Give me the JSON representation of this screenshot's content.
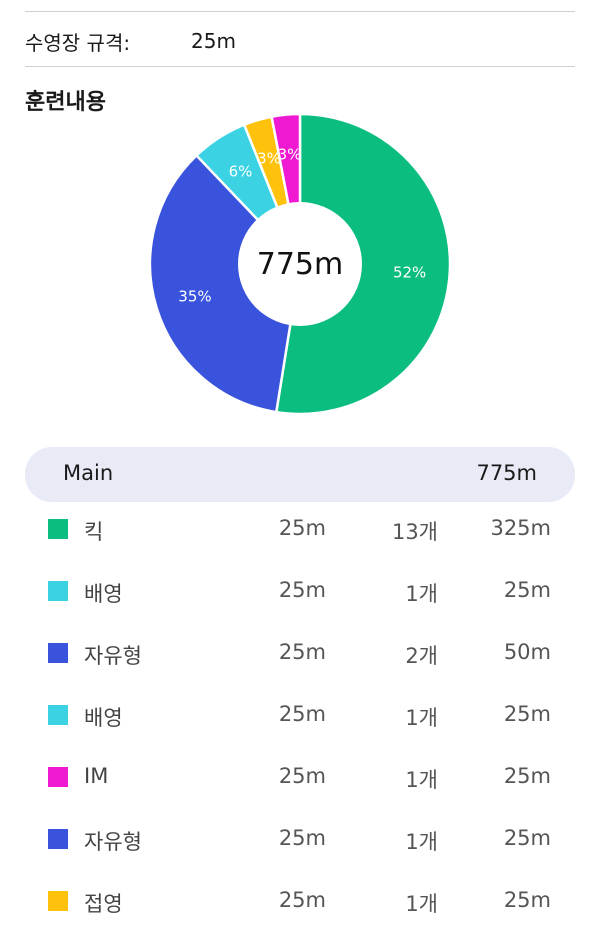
{
  "pool": {
    "label": "수영장 규격:",
    "value": "25m"
  },
  "section_title": "훈련내용",
  "chart_data": {
    "type": "pie",
    "center_label": "775m",
    "slices": [
      {
        "label": "52%",
        "value": 52,
        "color": "#0bbd7e"
      },
      {
        "label": "35%",
        "value": 35,
        "color": "#3a53dd"
      },
      {
        "label": "6%",
        "value": 6,
        "color": "#3bd3e4"
      },
      {
        "label": "3%",
        "value": 3,
        "color": "#fec20c"
      },
      {
        "label": "3%",
        "value": 3,
        "color": "#f019d2"
      }
    ]
  },
  "summary": {
    "label": "Main",
    "total": "775m"
  },
  "rows": [
    {
      "name": "킥",
      "dist": "25m",
      "count": "13개",
      "total": "325m",
      "color": "#0bbd7e"
    },
    {
      "name": "배영",
      "dist": "25m",
      "count": "1개",
      "total": "25m",
      "color": "#3bd3e4"
    },
    {
      "name": "자유형",
      "dist": "25m",
      "count": "2개",
      "total": "50m",
      "color": "#3a53dd"
    },
    {
      "name": "배영",
      "dist": "25m",
      "count": "1개",
      "total": "25m",
      "color": "#3bd3e4"
    },
    {
      "name": "IM",
      "dist": "25m",
      "count": "1개",
      "total": "25m",
      "color": "#f019d2"
    },
    {
      "name": "자유형",
      "dist": "25m",
      "count": "1개",
      "total": "25m",
      "color": "#3a53dd"
    },
    {
      "name": "접영",
      "dist": "25m",
      "count": "1개",
      "total": "25m",
      "color": "#fec20c"
    }
  ]
}
